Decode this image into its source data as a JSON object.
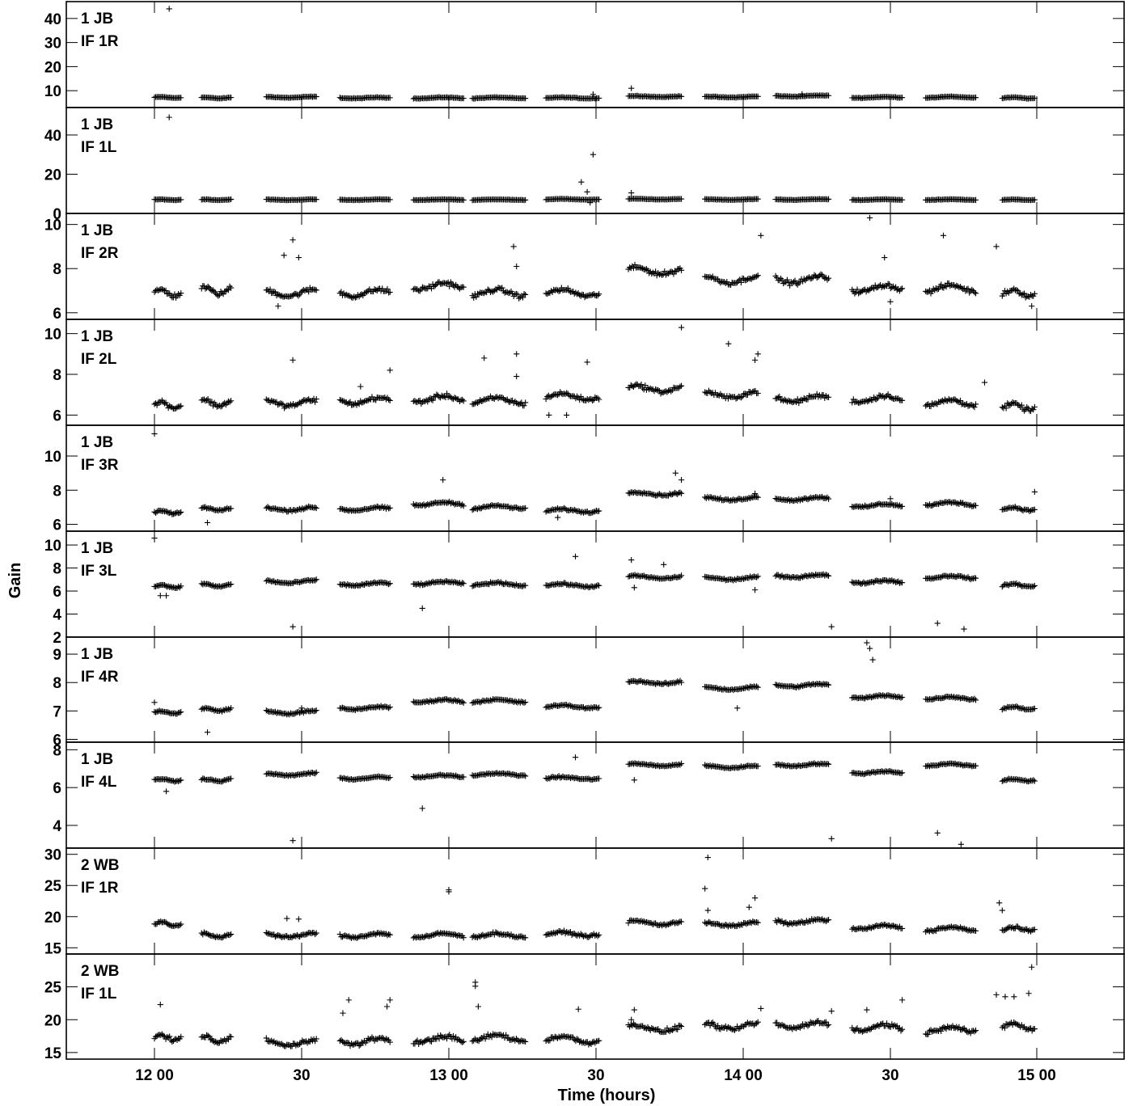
{
  "chart_data": {
    "type": "scatter",
    "title": "",
    "xlabel": "Time (hours)",
    "ylabel": "Gain",
    "grid": false,
    "x_unit": "hours",
    "xlim": [
      11.7,
      15.3
    ],
    "x_ticks": [
      {
        "value": 12.0,
        "label": "12 00"
      },
      {
        "value": 12.5,
        "label": "30"
      },
      {
        "value": 13.0,
        "label": "13 00"
      },
      {
        "value": 13.5,
        "label": "30"
      },
      {
        "value": 14.0,
        "label": "14 00"
      },
      {
        "value": 14.5,
        "label": "30"
      },
      {
        "value": 15.0,
        "label": "15 00"
      }
    ],
    "scans": [
      [
        12.0,
        12.09
      ],
      [
        12.16,
        12.26
      ],
      [
        12.38,
        12.55
      ],
      [
        12.63,
        12.8
      ],
      [
        12.88,
        13.05
      ],
      [
        13.08,
        13.26
      ],
      [
        13.33,
        13.51
      ],
      [
        13.61,
        13.79
      ],
      [
        13.87,
        14.05
      ],
      [
        14.11,
        14.29
      ],
      [
        14.37,
        14.54
      ],
      [
        14.62,
        14.79
      ],
      [
        14.88,
        14.99
      ]
    ],
    "panels": [
      {
        "station": "1 JB",
        "if": "IF 1R",
        "ylim": [
          3,
          47
        ],
        "yticks": [
          10,
          20,
          30,
          40
        ],
        "profile": [
          7.2,
          7.0,
          7.3,
          7.0,
          7.0,
          7.0,
          7.0,
          7.6,
          7.4,
          7.8,
          7.2,
          7.3,
          7.0
        ],
        "noise": 0.35,
        "outliers": [
          [
            12.05,
            44.0
          ],
          [
            13.49,
            8.5
          ],
          [
            13.62,
            11.0
          ],
          [
            14.2,
            8.6
          ]
        ]
      },
      {
        "station": "1 JB",
        "if": "IF 1L",
        "ylim": [
          0,
          54
        ],
        "yticks": [
          0,
          20,
          40
        ],
        "profile": [
          7.0,
          7.0,
          7.0,
          7.0,
          7.0,
          7.0,
          7.2,
          7.3,
          7.1,
          7.1,
          7.0,
          7.0,
          7.0
        ],
        "noise": 0.3,
        "outliers": [
          [
            12.05,
            49.0
          ],
          [
            13.49,
            30.0
          ],
          [
            13.45,
            16.0
          ],
          [
            13.47,
            11.0
          ],
          [
            13.48,
            5.5
          ],
          [
            13.62,
            10.5
          ]
        ]
      },
      {
        "station": "1 JB",
        "if": "IF 2R",
        "ylim": [
          5.7,
          10.5
        ],
        "yticks": [
          6,
          8,
          10
        ],
        "profile": [
          6.9,
          7.0,
          6.9,
          6.9,
          7.2,
          6.9,
          6.9,
          7.9,
          7.5,
          7.5,
          7.1,
          7.1,
          6.9
        ],
        "noise": 0.25,
        "outliers": [
          [
            12.47,
            9.3
          ],
          [
            12.44,
            8.6
          ],
          [
            12.49,
            8.5
          ],
          [
            12.42,
            6.3
          ],
          [
            13.22,
            9.0
          ],
          [
            13.23,
            8.1
          ],
          [
            14.06,
            9.5
          ],
          [
            14.43,
            10.3
          ],
          [
            14.48,
            8.5
          ],
          [
            14.68,
            9.5
          ],
          [
            14.86,
            9.0
          ],
          [
            14.5,
            6.5
          ],
          [
            14.98,
            6.3
          ]
        ]
      },
      {
        "station": "1 JB",
        "if": "IF 2L",
        "ylim": [
          5.5,
          10.7
        ],
        "yticks": [
          6,
          8,
          10
        ],
        "profile": [
          6.5,
          6.6,
          6.6,
          6.7,
          6.8,
          6.7,
          6.9,
          7.3,
          7.0,
          6.8,
          6.8,
          6.6,
          6.4
        ],
        "noise": 0.25,
        "outliers": [
          [
            12.47,
            8.7
          ],
          [
            12.7,
            7.4
          ],
          [
            12.8,
            8.2
          ],
          [
            13.12,
            8.8
          ],
          [
            13.23,
            9.0
          ],
          [
            13.23,
            7.9
          ],
          [
            13.79,
            10.3
          ],
          [
            13.47,
            8.6
          ],
          [
            13.95,
            9.5
          ],
          [
            14.05,
            9.0
          ],
          [
            14.04,
            8.7
          ],
          [
            14.82,
            7.6
          ],
          [
            13.34,
            6.0
          ],
          [
            13.4,
            6.0
          ]
        ]
      },
      {
        "station": "1 JB",
        "if": "IF 3R",
        "ylim": [
          5.6,
          11.8
        ],
        "yticks": [
          6,
          8,
          10
        ],
        "profile": [
          6.7,
          6.9,
          6.9,
          6.9,
          7.2,
          7.0,
          6.8,
          7.8,
          7.5,
          7.5,
          7.1,
          7.2,
          6.9
        ],
        "noise": 0.15,
        "outliers": [
          [
            12.0,
            11.3
          ],
          [
            12.18,
            6.1
          ],
          [
            12.98,
            8.6
          ],
          [
            13.37,
            6.4
          ],
          [
            13.77,
            9.0
          ],
          [
            13.79,
            8.6
          ],
          [
            14.04,
            7.8
          ],
          [
            14.5,
            7.5
          ],
          [
            14.99,
            7.9
          ]
        ]
      },
      {
        "station": "1 JB",
        "if": "IF 3L",
        "ylim": [
          2,
          11.2
        ],
        "yticks": [
          2,
          4,
          6,
          8,
          10
        ],
        "profile": [
          6.4,
          6.5,
          6.8,
          6.6,
          6.7,
          6.6,
          6.5,
          7.2,
          7.1,
          7.3,
          6.8,
          7.2,
          6.5
        ],
        "noise": 0.2,
        "outliers": [
          [
            12.0,
            10.6
          ],
          [
            12.02,
            5.6
          ],
          [
            12.04,
            5.6
          ],
          [
            12.47,
            2.9
          ],
          [
            12.91,
            4.5
          ],
          [
            13.43,
            9.0
          ],
          [
            13.62,
            8.7
          ],
          [
            13.63,
            6.3
          ],
          [
            13.73,
            8.3
          ],
          [
            14.04,
            6.1
          ],
          [
            14.3,
            2.9
          ],
          [
            14.66,
            3.2
          ],
          [
            14.75,
            2.7
          ]
        ]
      },
      {
        "station": "1 JB",
        "if": "IF 4R",
        "ylim": [
          5.9,
          9.6
        ],
        "yticks": [
          6,
          7,
          8,
          9
        ],
        "profile": [
          6.95,
          7.05,
          6.95,
          7.1,
          7.35,
          7.35,
          7.15,
          8.0,
          7.8,
          7.9,
          7.5,
          7.45,
          7.1
        ],
        "noise": 0.08,
        "outliers": [
          [
            12.18,
            6.25
          ],
          [
            12.0,
            7.3
          ],
          [
            12.5,
            7.1
          ],
          [
            13.98,
            7.1
          ],
          [
            14.42,
            9.4
          ],
          [
            14.43,
            9.2
          ],
          [
            14.44,
            8.8
          ]
        ]
      },
      {
        "station": "1 JB",
        "if": "IF 4L",
        "ylim": [
          2.8,
          8.4
        ],
        "yticks": [
          4,
          6,
          8
        ],
        "profile": [
          6.4,
          6.4,
          6.7,
          6.5,
          6.6,
          6.7,
          6.5,
          7.2,
          7.1,
          7.2,
          6.8,
          7.2,
          6.4
        ],
        "noise": 0.1,
        "outliers": [
          [
            12.04,
            5.8
          ],
          [
            12.47,
            3.2
          ],
          [
            12.91,
            4.9
          ],
          [
            13.43,
            7.6
          ],
          [
            13.63,
            6.4
          ],
          [
            14.3,
            3.3
          ],
          [
            14.66,
            3.6
          ],
          [
            14.74,
            3.0
          ]
        ]
      },
      {
        "station": "2 WB",
        "if": "IF 1R",
        "ylim": [
          14,
          31
        ],
        "yticks": [
          15,
          20,
          25,
          30
        ],
        "profile": [
          18.8,
          17.0,
          17.0,
          17.0,
          17.0,
          17.0,
          17.2,
          19.0,
          18.8,
          19.2,
          18.3,
          18.0,
          18.0
        ],
        "noise": 0.5,
        "outliers": [
          [
            13.88,
            29.5
          ],
          [
            13.87,
            24.5
          ],
          [
            13.88,
            21.0
          ],
          [
            14.04,
            23.0
          ],
          [
            14.02,
            21.5
          ],
          [
            13.0,
            24.3
          ],
          [
            13.0,
            24.0
          ],
          [
            12.45,
            19.7
          ],
          [
            12.49,
            19.6
          ],
          [
            14.87,
            22.2
          ],
          [
            14.88,
            21.0
          ]
        ]
      },
      {
        "station": "2 WB",
        "if": "IF 1L",
        "ylim": [
          14,
          30
        ],
        "yticks": [
          15,
          20,
          25
        ],
        "profile": [
          17.3,
          17.0,
          16.5,
          16.7,
          17.0,
          17.2,
          17.0,
          18.7,
          19.0,
          19.2,
          18.8,
          18.5,
          19.0
        ],
        "noise": 0.8,
        "outliers": [
          [
            13.09,
            25.7
          ],
          [
            13.09,
            25.1
          ],
          [
            13.1,
            22.0
          ],
          [
            14.86,
            23.8
          ],
          [
            14.89,
            23.5
          ],
          [
            14.92,
            23.5
          ],
          [
            14.98,
            28.0
          ],
          [
            14.97,
            24.0
          ],
          [
            12.02,
            22.3
          ],
          [
            12.66,
            23.0
          ],
          [
            12.64,
            21.0
          ],
          [
            12.8,
            23.0
          ],
          [
            12.79,
            22.0
          ],
          [
            13.44,
            21.6
          ],
          [
            13.62,
            20.0
          ],
          [
            13.63,
            21.5
          ],
          [
            14.3,
            21.3
          ],
          [
            14.42,
            21.5
          ],
          [
            14.06,
            21.7
          ],
          [
            14.54,
            23.0
          ]
        ]
      }
    ]
  }
}
